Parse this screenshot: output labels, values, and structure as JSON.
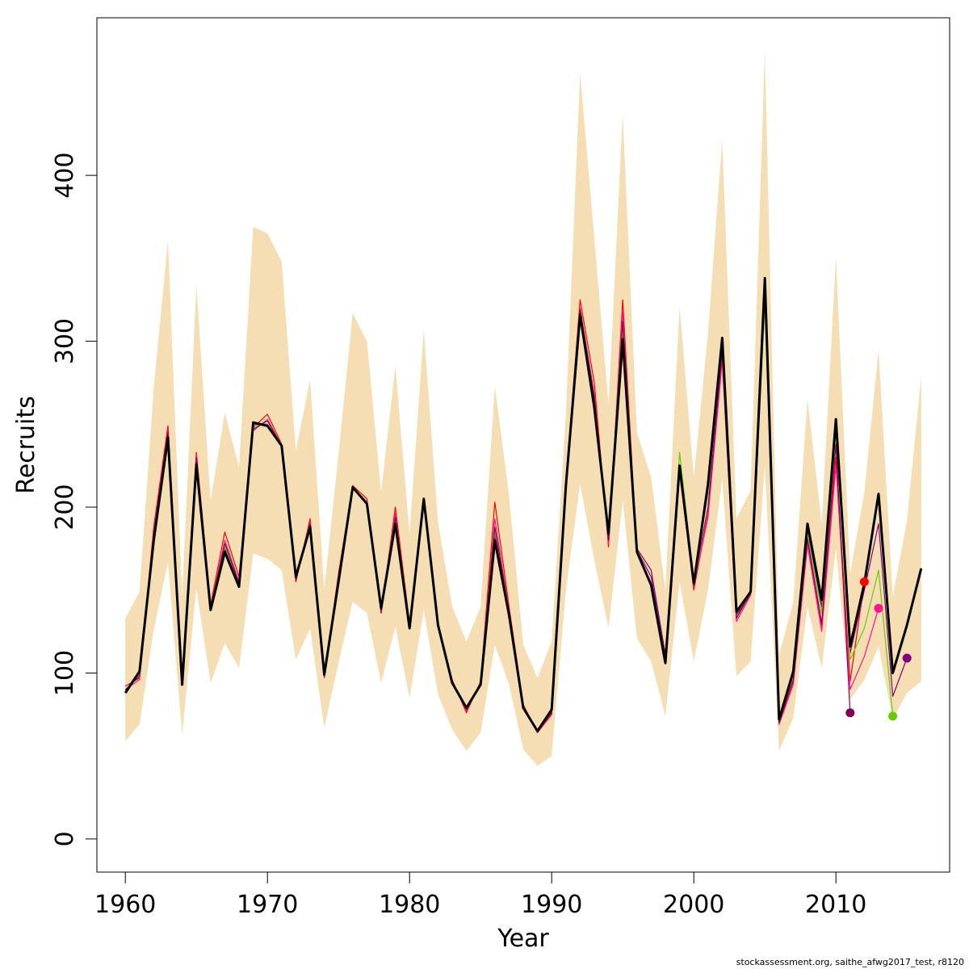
{
  "chart_data": {
    "type": "line",
    "xlabel": "Year",
    "ylabel": "Recruits",
    "xlim": [
      1958,
      2018
    ],
    "ylim": [
      -20,
      495
    ],
    "x_ticks": [
      1960,
      1970,
      1980,
      1990,
      2000,
      2010
    ],
    "y_ticks": [
      0,
      100,
      200,
      300,
      400
    ],
    "band_color": "#f5deb3",
    "band": {
      "years": [
        1960,
        1961,
        1962,
        1963,
        1964,
        1965,
        1966,
        1967,
        1968,
        1969,
        1970,
        1971,
        1972,
        1973,
        1974,
        1975,
        1976,
        1977,
        1978,
        1979,
        1980,
        1981,
        1982,
        1983,
        1984,
        1985,
        1986,
        1987,
        1988,
        1989,
        1990,
        1991,
        1992,
        1993,
        1994,
        1995,
        1996,
        1997,
        1998,
        1999,
        2000,
        2001,
        2002,
        2003,
        2004,
        2005,
        2006,
        2007,
        2008,
        2009,
        2010,
        2011,
        2012,
        2013,
        2014,
        2015,
        2016
      ],
      "upper": [
        133,
        149,
        272,
        361,
        146,
        334,
        204,
        257,
        224,
        369,
        365,
        348,
        234,
        277,
        151,
        232,
        317,
        300,
        209,
        285,
        184,
        307,
        191,
        140,
        119,
        140,
        273,
        207,
        117,
        97,
        119,
        256,
        462,
        362,
        262,
        437,
        245,
        218,
        150,
        321,
        218,
        305,
        422,
        193,
        210,
        475,
        111,
        143,
        265,
        190,
        351,
        160,
        209,
        295,
        146,
        192,
        279
      ],
      "lower": [
        59,
        69,
        126,
        167,
        63,
        151,
        94,
        118,
        103,
        172,
        169,
        162,
        108,
        127,
        67,
        106,
        143,
        136,
        94,
        128,
        85,
        138,
        87,
        66,
        53,
        64,
        117,
        93,
        54,
        44,
        50,
        150,
        214,
        168,
        127,
        204,
        121,
        107,
        74,
        155,
        107,
        150,
        217,
        98,
        107,
        225,
        53,
        73,
        140,
        103,
        175,
        84,
        96,
        116,
        72,
        88,
        95
      ]
    },
    "series": [
      {
        "color": "#000000",
        "width": 3,
        "years": [
          1960,
          1961,
          1962,
          1963,
          1964,
          1965,
          1966,
          1967,
          1968,
          1969,
          1970,
          1971,
          1972,
          1973,
          1974,
          1975,
          1976,
          1977,
          1978,
          1979,
          1980,
          1981,
          1982,
          1983,
          1984,
          1985,
          1986,
          1987,
          1988,
          1989,
          1990,
          1991,
          1992,
          1993,
          1994,
          1995,
          1996,
          1997,
          1998,
          1999,
          2000,
          2001,
          2002,
          2003,
          2004,
          2005,
          2006,
          2007,
          2008,
          2009,
          2010,
          2011,
          2012,
          2013,
          2014,
          2015,
          2016
        ],
        "values": [
          88,
          101,
          180,
          242,
          93,
          226,
          138,
          173,
          152,
          251,
          249,
          237,
          158,
          188,
          99,
          155,
          212,
          202,
          139,
          190,
          127,
          205,
          129,
          94,
          79,
          93,
          180,
          135,
          79,
          65,
          78,
          213,
          316,
          260,
          184,
          301,
          173,
          153,
          106,
          225,
          154,
          214,
          302,
          137,
          149,
          338,
          72,
          101,
          190,
          144,
          253,
          116,
          154,
          208,
          100,
          129,
          163
        ]
      },
      {
        "color": "#ff0000",
        "width": 1.2,
        "years": [
          1960,
          1961,
          1962,
          1963,
          1964,
          1965,
          1966,
          1967,
          1968,
          1969,
          1970,
          1971,
          1972,
          1973,
          1974,
          1975,
          1976,
          1977,
          1978,
          1979,
          1980,
          1981,
          1982,
          1983,
          1984,
          1985,
          1986,
          1987,
          1988,
          1989,
          1990,
          1991,
          1992,
          1993,
          1994,
          1995,
          1996,
          1997,
          1998,
          1999,
          2000,
          2001,
          2002,
          2003,
          2004,
          2005,
          2006,
          2007,
          2008,
          2009,
          2010,
          2011,
          2012
        ],
        "values": [
          92,
          97,
          188,
          249,
          95,
          233,
          141,
          185,
          158,
          248,
          256,
          238,
          155,
          193,
          98,
          160,
          213,
          205,
          136,
          200,
          130,
          203,
          130,
          96,
          76,
          95,
          203,
          140,
          81,
          64,
          75,
          215,
          325,
          275,
          176,
          325,
          173,
          154,
          112,
          222,
          150,
          196,
          290,
          133,
          150,
          330,
          70,
          95,
          180,
          128,
          230,
          95,
          155
        ]
      },
      {
        "color": "#ff1493",
        "width": 1.2,
        "years": [
          1960,
          1961,
          1962,
          1963,
          1964,
          1965,
          1966,
          1967,
          1968,
          1969,
          1970,
          1971,
          1972,
          1973,
          1974,
          1975,
          1976,
          1977,
          1978,
          1979,
          1980,
          1981,
          1982,
          1983,
          1984,
          1985,
          1986,
          1987,
          1988,
          1989,
          1990,
          1991,
          1992,
          1993,
          1994,
          1995,
          1996,
          1997,
          1998,
          1999,
          2000,
          2001,
          2002,
          2003,
          2004,
          2005,
          2006,
          2007,
          2008,
          2009,
          2010,
          2011,
          2012,
          2013
        ],
        "values": [
          90,
          96,
          185,
          246,
          94,
          231,
          139,
          180,
          155,
          246,
          253,
          237,
          156,
          191,
          97,
          158,
          212,
          203,
          137,
          196,
          128,
          202,
          129,
          95,
          77,
          94,
          193,
          137,
          80,
          64,
          76,
          214,
          320,
          268,
          178,
          318,
          172,
          152,
          110,
          220,
          152,
          194,
          288,
          131,
          147,
          326,
          69,
          93,
          177,
          125,
          225,
          90,
          110,
          139
        ]
      },
      {
        "color": "#800080",
        "width": 1.2,
        "years": [
          1960,
          1961,
          1962,
          1963,
          1964,
          1965,
          1966,
          1967,
          1968,
          1969,
          1970,
          1971,
          1972,
          1973,
          1974,
          1975,
          1976,
          1977,
          1978,
          1979,
          1980,
          1981,
          1982,
          1983,
          1984,
          1985,
          1986,
          1987,
          1988,
          1989,
          1990,
          1991,
          1992,
          1993,
          1994,
          1995,
          1996,
          1997,
          1998,
          1999,
          2000,
          2001,
          2002,
          2003,
          2004,
          2005,
          2006,
          2007,
          2008,
          2009,
          2010,
          2011,
          2012,
          2013,
          2014,
          2015
        ],
        "values": [
          89,
          99,
          181,
          243,
          93,
          228,
          138,
          175,
          153,
          250,
          250,
          237,
          157,
          189,
          98,
          156,
          212,
          202,
          138,
          192,
          127,
          204,
          129,
          94,
          78,
          93,
          183,
          136,
          79,
          65,
          77,
          213,
          317,
          262,
          182,
          305,
          174,
          158,
          108,
          224,
          153,
          210,
          298,
          135,
          148,
          335,
          71,
          99,
          187,
          140,
          248,
          112,
          150,
          190,
          86,
          109
        ]
      },
      {
        "color": "#66cc00",
        "width": 1.2,
        "years": [
          1960,
          1961,
          1962,
          1963,
          1964,
          1965,
          1966,
          1967,
          1968,
          1969,
          1970,
          1971,
          1972,
          1973,
          1974,
          1975,
          1976,
          1977,
          1978,
          1979,
          1980,
          1981,
          1982,
          1983,
          1984,
          1985,
          1986,
          1987,
          1988,
          1989,
          1990,
          1991,
          1992,
          1993,
          1994,
          1995,
          1996,
          1997,
          1998,
          1999,
          2000,
          2001,
          2002,
          2003,
          2004,
          2005,
          2006,
          2007,
          2008,
          2009,
          2010,
          2011,
          2012,
          2013,
          2014
        ],
        "values": [
          89,
          99,
          182,
          244,
          93,
          229,
          139,
          176,
          154,
          249,
          250,
          238,
          157,
          190,
          98,
          157,
          212,
          203,
          138,
          193,
          128,
          204,
          130,
          95,
          78,
          94,
          185,
          136,
          80,
          65,
          77,
          214,
          318,
          264,
          186,
          308,
          173,
          154,
          107,
          233,
          156,
          208,
          300,
          136,
          148,
          322,
          71,
          98,
          184,
          136,
          245,
          108,
          127,
          162,
          74
        ]
      },
      {
        "color": "#800060",
        "width": 1.2,
        "years": [
          1960,
          1961,
          1962,
          1963,
          1964,
          1965,
          1966,
          1967,
          1968,
          1969,
          1970,
          1971,
          1972,
          1973,
          1974,
          1975,
          1976,
          1977,
          1978,
          1979,
          1980,
          1981,
          1982,
          1983,
          1984,
          1985,
          1986,
          1987,
          1988,
          1989,
          1990,
          1991,
          1992,
          1993,
          1994,
          1995,
          1996,
          1997,
          1998,
          1999,
          2000,
          2001,
          2002,
          2003,
          2004,
          2005,
          2006,
          2007,
          2008,
          2009,
          2010,
          2011
        ],
        "values": [
          90,
          98,
          184,
          245,
          94,
          230,
          139,
          178,
          154,
          247,
          252,
          237,
          156,
          190,
          98,
          157,
          212,
          203,
          137,
          194,
          128,
          203,
          130,
          95,
          78,
          94,
          188,
          137,
          80,
          65,
          76,
          214,
          319,
          266,
          180,
          312,
          175,
          162,
          111,
          223,
          154,
          200,
          294,
          133,
          148,
          328,
          70,
          96,
          181,
          130,
          238,
          76
        ]
      }
    ],
    "terminal_points": [
      {
        "year": 2011,
        "value": 76,
        "color": "#800060"
      },
      {
        "year": 2012,
        "value": 155,
        "color": "#ff0000"
      },
      {
        "year": 2013,
        "value": 139,
        "color": "#ff1493"
      },
      {
        "year": 2014,
        "value": 74,
        "color": "#66cc00"
      },
      {
        "year": 2015,
        "value": 109,
        "color": "#800080"
      }
    ]
  },
  "footer": "stockassessment.org, saithe_afwg2017_test, r8120"
}
